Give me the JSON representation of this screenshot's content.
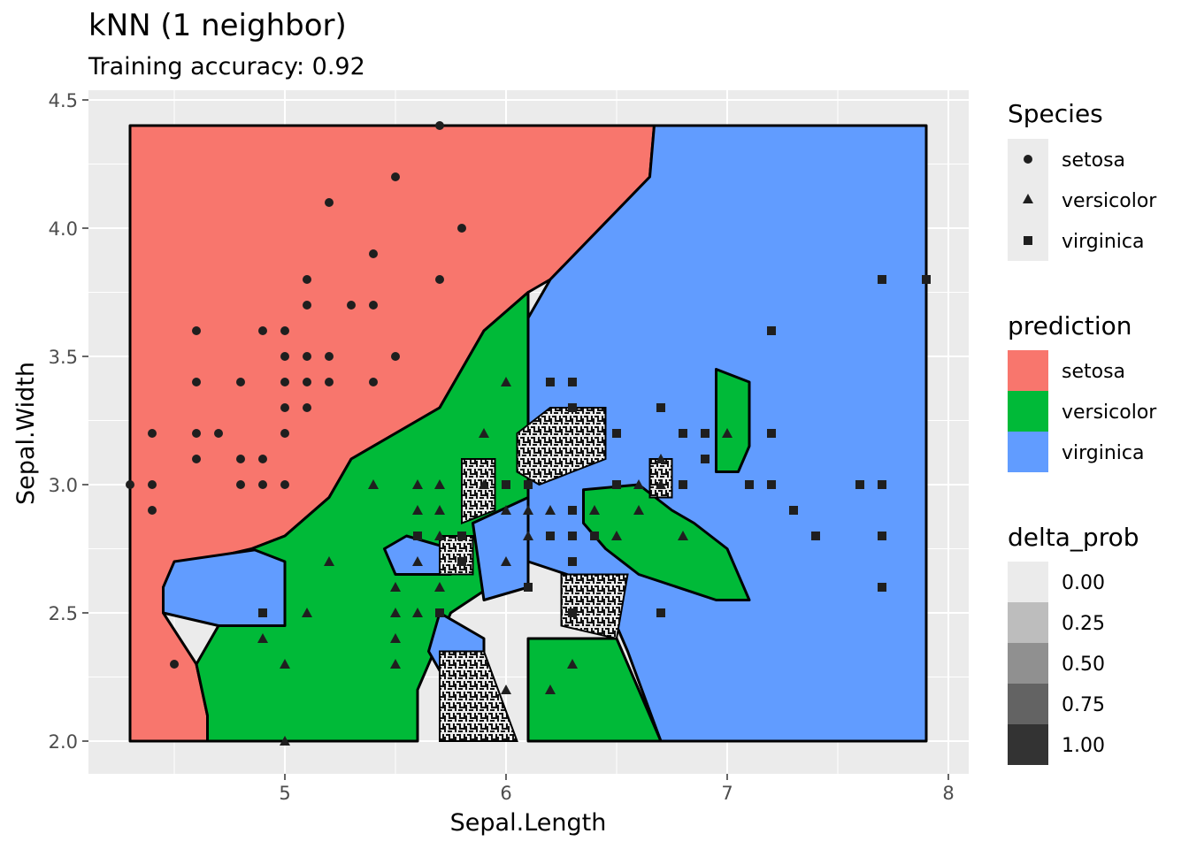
{
  "chart_data": {
    "type": "scatter",
    "title": "kNN (1 neighbor)",
    "subtitle": "Training accuracy: 0.92",
    "xlabel": "Sepal.Length",
    "ylabel": "Sepal.Width",
    "xlim": [
      4.1,
      8.1
    ],
    "ylim": [
      1.9,
      4.5
    ],
    "x_ticks": [
      "5",
      "6",
      "7",
      "8"
    ],
    "y_ticks": [
      "2.0",
      "2.5",
      "3.0",
      "3.5",
      "4.0",
      "4.5"
    ],
    "grid": true,
    "colors": {
      "setosa": "#F8766D",
      "versicolor": "#00BA38",
      "virginica": "#619CFF",
      "panel": "#EBEBEB",
      "point": "#1f1f1f"
    },
    "legends": {
      "species": {
        "title": "Species",
        "entries": [
          {
            "label": "setosa",
            "shape": "circle"
          },
          {
            "label": "versicolor",
            "shape": "triangle"
          },
          {
            "label": "virginica",
            "shape": "square"
          }
        ]
      },
      "prediction": {
        "title": "prediction",
        "entries": [
          {
            "label": "setosa",
            "color": "#F8766D"
          },
          {
            "label": "versicolor",
            "color": "#00BA38"
          },
          {
            "label": "virginica",
            "color": "#619CFF"
          }
        ]
      },
      "delta_prob": {
        "title": "delta_prob",
        "entries": [
          {
            "label": "0.00",
            "color": "#EBEBEB"
          },
          {
            "label": "0.25",
            "color": "#BDBDBD"
          },
          {
            "label": "0.50",
            "color": "#909090"
          },
          {
            "label": "0.75",
            "color": "#636363"
          },
          {
            "label": "1.00",
            "color": "#333333"
          }
        ]
      }
    },
    "regions": [
      {
        "prediction": "setosa",
        "polygon": [
          [
            4.3,
            2.0
          ],
          [
            4.3,
            4.4
          ],
          [
            6.67,
            4.4
          ],
          [
            6.65,
            4.2
          ],
          [
            6.2,
            3.8
          ],
          [
            6.1,
            3.75
          ],
          [
            5.9,
            3.6
          ],
          [
            5.8,
            3.45
          ],
          [
            5.7,
            3.3
          ],
          [
            5.5,
            3.2
          ],
          [
            5.3,
            3.1
          ],
          [
            5.2,
            2.95
          ],
          [
            5.0,
            2.8
          ],
          [
            4.85,
            2.75
          ],
          [
            4.6,
            2.7
          ],
          [
            4.45,
            2.6
          ],
          [
            4.45,
            2.5
          ],
          [
            4.6,
            2.3
          ],
          [
            4.65,
            2.1
          ],
          [
            4.65,
            2.0
          ]
        ]
      },
      {
        "prediction": "virginica",
        "polygon": [
          [
            6.67,
            4.4
          ],
          [
            7.9,
            4.4
          ],
          [
            7.9,
            2.0
          ],
          [
            6.7,
            2.0
          ],
          [
            6.55,
            2.35
          ],
          [
            6.5,
            2.45
          ],
          [
            6.45,
            2.6
          ],
          [
            6.1,
            2.7
          ],
          [
            6.05,
            3.0
          ],
          [
            6.1,
            3.65
          ],
          [
            6.2,
            3.8
          ],
          [
            6.65,
            4.2
          ]
        ]
      },
      {
        "prediction": "virginica",
        "polygon": [
          [
            4.45,
            2.5
          ],
          [
            4.45,
            2.6
          ],
          [
            4.5,
            2.7
          ],
          [
            4.9,
            2.75
          ],
          [
            5.0,
            2.7
          ],
          [
            5.0,
            2.45
          ],
          [
            4.7,
            2.45
          ]
        ]
      },
      {
        "prediction": "versicolor",
        "polygon": [
          [
            4.65,
            2.0
          ],
          [
            4.65,
            2.1
          ],
          [
            4.6,
            2.3
          ],
          [
            4.7,
            2.45
          ],
          [
            5.0,
            2.45
          ],
          [
            5.0,
            2.7
          ],
          [
            4.85,
            2.75
          ],
          [
            5.0,
            2.8
          ],
          [
            5.2,
            2.95
          ],
          [
            5.3,
            3.1
          ],
          [
            5.5,
            3.2
          ],
          [
            5.7,
            3.3
          ],
          [
            5.8,
            3.45
          ],
          [
            5.9,
            3.6
          ],
          [
            6.1,
            3.75
          ],
          [
            6.1,
            2.7
          ],
          [
            5.75,
            2.5
          ],
          [
            5.7,
            2.4
          ],
          [
            5.6,
            2.2
          ],
          [
            5.6,
            2.0
          ]
        ]
      },
      {
        "prediction": "versicolor",
        "polygon": [
          [
            6.1,
            2.0
          ],
          [
            6.1,
            2.4
          ],
          [
            6.5,
            2.4
          ],
          [
            6.6,
            2.2
          ],
          [
            6.7,
            2.0
          ]
        ]
      },
      {
        "prediction": "versicolor",
        "polygon": [
          [
            6.35,
            2.98
          ],
          [
            6.6,
            3.0
          ],
          [
            6.75,
            2.9
          ],
          [
            6.85,
            2.85
          ],
          [
            7.0,
            2.75
          ],
          [
            7.1,
            2.55
          ],
          [
            6.95,
            2.55
          ],
          [
            6.6,
            2.65
          ],
          [
            6.45,
            2.75
          ],
          [
            6.35,
            2.85
          ]
        ]
      },
      {
        "prediction": "versicolor",
        "polygon": [
          [
            6.95,
            3.45
          ],
          [
            7.1,
            3.4
          ],
          [
            7.1,
            3.15
          ],
          [
            7.05,
            3.05
          ],
          [
            6.95,
            3.05
          ]
        ]
      },
      {
        "prediction": "virginica",
        "polygon": [
          [
            5.45,
            2.75
          ],
          [
            5.55,
            2.8
          ],
          [
            5.75,
            2.75
          ],
          [
            5.75,
            2.65
          ],
          [
            5.5,
            2.65
          ]
        ]
      },
      {
        "prediction": "virginica",
        "polygon": [
          [
            5.85,
            2.85
          ],
          [
            6.1,
            2.95
          ],
          [
            6.1,
            2.6
          ],
          [
            5.9,
            2.55
          ]
        ]
      },
      {
        "prediction": "virginica",
        "polygon": [
          [
            5.7,
            2.5
          ],
          [
            5.9,
            2.4
          ],
          [
            5.9,
            2.2
          ],
          [
            5.75,
            2.2
          ],
          [
            5.65,
            2.35
          ]
        ]
      }
    ],
    "uncertain_regions": [
      {
        "delta_prob": 0.0,
        "polygon": [
          [
            6.05,
            3.2
          ],
          [
            6.2,
            3.3
          ],
          [
            6.45,
            3.3
          ],
          [
            6.45,
            3.1
          ],
          [
            6.3,
            3.05
          ],
          [
            6.15,
            3.0
          ],
          [
            6.05,
            3.05
          ]
        ]
      },
      {
        "delta_prob": 0.0,
        "polygon": [
          [
            5.8,
            3.1
          ],
          [
            5.95,
            3.1
          ],
          [
            5.95,
            2.9
          ],
          [
            5.8,
            2.85
          ]
        ]
      },
      {
        "delta_prob": 0.0,
        "polygon": [
          [
            5.7,
            2.8
          ],
          [
            5.85,
            2.8
          ],
          [
            5.85,
            2.65
          ],
          [
            5.7,
            2.65
          ]
        ]
      },
      {
        "delta_prob": 0.0,
        "polygon": [
          [
            6.25,
            2.65
          ],
          [
            6.55,
            2.65
          ],
          [
            6.5,
            2.4
          ],
          [
            6.25,
            2.45
          ]
        ]
      },
      {
        "delta_prob": 0.0,
        "polygon": [
          [
            5.7,
            2.35
          ],
          [
            5.9,
            2.35
          ],
          [
            6.05,
            2.0
          ],
          [
            5.7,
            2.0
          ]
        ]
      },
      {
        "delta_prob": 0.0,
        "polygon": [
          [
            6.65,
            3.1
          ],
          [
            6.75,
            3.1
          ],
          [
            6.75,
            2.95
          ],
          [
            6.65,
            2.95
          ]
        ]
      }
    ],
    "points": [
      {
        "species": "setosa",
        "x": 4.3,
        "y": 3.0
      },
      {
        "species": "setosa",
        "x": 4.4,
        "y": 3.2
      },
      {
        "species": "setosa",
        "x": 4.4,
        "y": 3.0
      },
      {
        "species": "setosa",
        "x": 4.4,
        "y": 2.9
      },
      {
        "species": "setosa",
        "x": 4.5,
        "y": 2.3
      },
      {
        "species": "setosa",
        "x": 4.6,
        "y": 3.6
      },
      {
        "species": "setosa",
        "x": 4.6,
        "y": 3.4
      },
      {
        "species": "setosa",
        "x": 4.6,
        "y": 3.2
      },
      {
        "species": "setosa",
        "x": 4.6,
        "y": 3.1
      },
      {
        "species": "setosa",
        "x": 4.7,
        "y": 3.2
      },
      {
        "species": "setosa",
        "x": 4.8,
        "y": 3.4
      },
      {
        "species": "setosa",
        "x": 4.8,
        "y": 3.1
      },
      {
        "species": "setosa",
        "x": 4.8,
        "y": 3.0
      },
      {
        "species": "setosa",
        "x": 4.9,
        "y": 3.6
      },
      {
        "species": "setosa",
        "x": 4.9,
        "y": 3.1
      },
      {
        "species": "setosa",
        "x": 4.9,
        "y": 3.0
      },
      {
        "species": "setosa",
        "x": 5.0,
        "y": 3.6
      },
      {
        "species": "setosa",
        "x": 5.0,
        "y": 3.5
      },
      {
        "species": "setosa",
        "x": 5.0,
        "y": 3.4
      },
      {
        "species": "setosa",
        "x": 5.0,
        "y": 3.3
      },
      {
        "species": "setosa",
        "x": 5.0,
        "y": 3.2
      },
      {
        "species": "setosa",
        "x": 5.0,
        "y": 3.0
      },
      {
        "species": "setosa",
        "x": 5.1,
        "y": 3.8
      },
      {
        "species": "setosa",
        "x": 5.1,
        "y": 3.7
      },
      {
        "species": "setosa",
        "x": 5.1,
        "y": 3.5
      },
      {
        "species": "setosa",
        "x": 5.1,
        "y": 3.4
      },
      {
        "species": "setosa",
        "x": 5.1,
        "y": 3.3
      },
      {
        "species": "setosa",
        "x": 5.2,
        "y": 4.1
      },
      {
        "species": "setosa",
        "x": 5.2,
        "y": 3.5
      },
      {
        "species": "setosa",
        "x": 5.2,
        "y": 3.4
      },
      {
        "species": "setosa",
        "x": 5.3,
        "y": 3.7
      },
      {
        "species": "setosa",
        "x": 5.4,
        "y": 3.9
      },
      {
        "species": "setosa",
        "x": 5.4,
        "y": 3.7
      },
      {
        "species": "setosa",
        "x": 5.4,
        "y": 3.4
      },
      {
        "species": "setosa",
        "x": 5.5,
        "y": 4.2
      },
      {
        "species": "setosa",
        "x": 5.5,
        "y": 3.5
      },
      {
        "species": "setosa",
        "x": 5.7,
        "y": 4.4
      },
      {
        "species": "setosa",
        "x": 5.7,
        "y": 3.8
      },
      {
        "species": "setosa",
        "x": 5.8,
        "y": 4.0
      },
      {
        "species": "versicolor",
        "x": 4.9,
        "y": 2.4
      },
      {
        "species": "versicolor",
        "x": 5.0,
        "y": 2.3
      },
      {
        "species": "versicolor",
        "x": 5.0,
        "y": 2.0
      },
      {
        "species": "versicolor",
        "x": 5.1,
        "y": 2.5
      },
      {
        "species": "versicolor",
        "x": 5.2,
        "y": 2.7
      },
      {
        "species": "versicolor",
        "x": 5.4,
        "y": 3.0
      },
      {
        "species": "versicolor",
        "x": 5.5,
        "y": 2.6
      },
      {
        "species": "versicolor",
        "x": 5.5,
        "y": 2.5
      },
      {
        "species": "versicolor",
        "x": 5.5,
        "y": 2.4
      },
      {
        "species": "versicolor",
        "x": 5.5,
        "y": 2.3
      },
      {
        "species": "versicolor",
        "x": 5.6,
        "y": 3.0
      },
      {
        "species": "versicolor",
        "x": 5.6,
        "y": 2.9
      },
      {
        "species": "versicolor",
        "x": 5.6,
        "y": 2.7
      },
      {
        "species": "versicolor",
        "x": 5.6,
        "y": 2.5
      },
      {
        "species": "versicolor",
        "x": 5.7,
        "y": 3.0
      },
      {
        "species": "versicolor",
        "x": 5.7,
        "y": 2.9
      },
      {
        "species": "versicolor",
        "x": 5.7,
        "y": 2.8
      },
      {
        "species": "versicolor",
        "x": 5.7,
        "y": 2.6
      },
      {
        "species": "versicolor",
        "x": 5.8,
        "y": 2.7
      },
      {
        "species": "versicolor",
        "x": 5.9,
        "y": 3.2
      },
      {
        "species": "versicolor",
        "x": 5.9,
        "y": 3.0
      },
      {
        "species": "versicolor",
        "x": 6.0,
        "y": 3.4
      },
      {
        "species": "versicolor",
        "x": 6.0,
        "y": 2.9
      },
      {
        "species": "versicolor",
        "x": 6.0,
        "y": 2.7
      },
      {
        "species": "versicolor",
        "x": 6.0,
        "y": 2.2
      },
      {
        "species": "versicolor",
        "x": 6.1,
        "y": 2.9
      },
      {
        "species": "versicolor",
        "x": 6.1,
        "y": 2.8
      },
      {
        "species": "versicolor",
        "x": 6.2,
        "y": 2.9
      },
      {
        "species": "versicolor",
        "x": 6.2,
        "y": 2.2
      },
      {
        "species": "versicolor",
        "x": 6.3,
        "y": 2.3
      },
      {
        "species": "versicolor",
        "x": 6.4,
        "y": 2.9
      },
      {
        "species": "versicolor",
        "x": 6.5,
        "y": 2.8
      },
      {
        "species": "versicolor",
        "x": 6.6,
        "y": 3.0
      },
      {
        "species": "versicolor",
        "x": 6.6,
        "y": 2.9
      },
      {
        "species": "versicolor",
        "x": 6.7,
        "y": 3.1
      },
      {
        "species": "versicolor",
        "x": 6.7,
        "y": 3.0
      },
      {
        "species": "versicolor",
        "x": 6.8,
        "y": 2.8
      },
      {
        "species": "versicolor",
        "x": 7.0,
        "y": 3.2
      },
      {
        "species": "virginica",
        "x": 4.9,
        "y": 2.5
      },
      {
        "species": "virginica",
        "x": 5.6,
        "y": 2.8
      },
      {
        "species": "virginica",
        "x": 5.7,
        "y": 2.5
      },
      {
        "species": "virginica",
        "x": 5.8,
        "y": 2.8
      },
      {
        "species": "virginica",
        "x": 5.8,
        "y": 2.7
      },
      {
        "species": "virginica",
        "x": 6.0,
        "y": 3.0
      },
      {
        "species": "virginica",
        "x": 6.1,
        "y": 3.0
      },
      {
        "species": "virginica",
        "x": 6.1,
        "y": 2.6
      },
      {
        "species": "virginica",
        "x": 6.2,
        "y": 3.4
      },
      {
        "species": "virginica",
        "x": 6.2,
        "y": 2.8
      },
      {
        "species": "virginica",
        "x": 6.3,
        "y": 3.4
      },
      {
        "species": "virginica",
        "x": 6.3,
        "y": 3.3
      },
      {
        "species": "virginica",
        "x": 6.3,
        "y": 2.9
      },
      {
        "species": "virginica",
        "x": 6.3,
        "y": 2.8
      },
      {
        "species": "virginica",
        "x": 6.3,
        "y": 2.7
      },
      {
        "species": "virginica",
        "x": 6.3,
        "y": 2.5
      },
      {
        "species": "virginica",
        "x": 6.4,
        "y": 2.8
      },
      {
        "species": "virginica",
        "x": 6.5,
        "y": 3.2
      },
      {
        "species": "virginica",
        "x": 6.5,
        "y": 3.0
      },
      {
        "species": "virginica",
        "x": 6.7,
        "y": 3.3
      },
      {
        "species": "virginica",
        "x": 6.7,
        "y": 2.5
      },
      {
        "species": "virginica",
        "x": 6.8,
        "y": 3.2
      },
      {
        "species": "virginica",
        "x": 6.8,
        "y": 3.0
      },
      {
        "species": "virginica",
        "x": 6.9,
        "y": 3.2
      },
      {
        "species": "virginica",
        "x": 6.9,
        "y": 3.1
      },
      {
        "species": "virginica",
        "x": 7.1,
        "y": 3.0
      },
      {
        "species": "virginica",
        "x": 7.2,
        "y": 3.6
      },
      {
        "species": "virginica",
        "x": 7.2,
        "y": 3.2
      },
      {
        "species": "virginica",
        "x": 7.2,
        "y": 3.0
      },
      {
        "species": "virginica",
        "x": 7.3,
        "y": 2.9
      },
      {
        "species": "virginica",
        "x": 7.4,
        "y": 2.8
      },
      {
        "species": "virginica",
        "x": 7.6,
        "y": 3.0
      },
      {
        "species": "virginica",
        "x": 7.7,
        "y": 3.8
      },
      {
        "species": "virginica",
        "x": 7.7,
        "y": 3.0
      },
      {
        "species": "virginica",
        "x": 7.7,
        "y": 2.8
      },
      {
        "species": "virginica",
        "x": 7.7,
        "y": 2.6
      },
      {
        "species": "virginica",
        "x": 7.9,
        "y": 3.8
      }
    ]
  }
}
